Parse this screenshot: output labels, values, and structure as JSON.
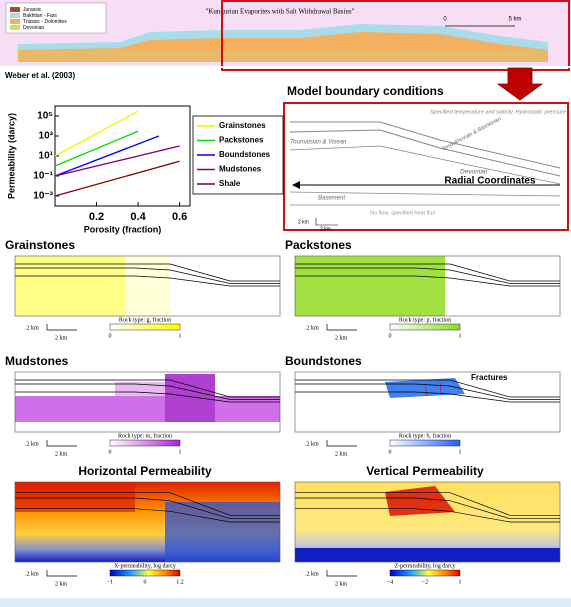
{
  "banner": {
    "title": "\"Kungurian Evaporites with Salt Withdrawal Basins\"",
    "legend": [
      "Jurassic",
      "Bakhtiari - Fars",
      "Triassic - Dolomites",
      "Devonian"
    ],
    "scale": [
      "0",
      "5 km"
    ]
  },
  "citation": "Weber et al. (2003)",
  "permeability_plot": {
    "type": "line",
    "x_label": "Porosity (fraction)",
    "y_label": "Permeability (darcy)",
    "xlim": [
      0,
      0.65
    ],
    "xticks": [
      0.2,
      0.4,
      0.6
    ],
    "ylim": [
      0.0001,
      1000000
    ],
    "log_y": true,
    "yticks": [
      {
        "value": 100000,
        "label": "10⁵"
      },
      {
        "value": 1000,
        "label": "10³"
      },
      {
        "value": 10,
        "label": "10¹"
      },
      {
        "value": 0.1,
        "label": "10⁻¹"
      },
      {
        "value": 0.001,
        "label": "10⁻³"
      }
    ],
    "series": [
      {
        "name": "Grainstones",
        "color": "#f2f200",
        "x": [
          0,
          0.4
        ],
        "values": [
          10,
          300000
        ]
      },
      {
        "name": "Packstones",
        "color": "#00dd00",
        "x": [
          0,
          0.4
        ],
        "values": [
          1,
          3000
        ]
      },
      {
        "name": "Boundstones",
        "color": "#0000ee",
        "x": [
          0,
          0.5
        ],
        "values": [
          0.1,
          1000
        ]
      },
      {
        "name": "Mudstones",
        "color": "#800080",
        "x": [
          0,
          0.6
        ],
        "values": [
          0.1,
          100
        ]
      },
      {
        "name": "Shale",
        "color": "#800000",
        "x": [
          0,
          0.6
        ],
        "values": [
          0.001,
          3
        ]
      }
    ]
  },
  "boundary_panel": {
    "title": "Model boundary conditions",
    "top_label": "Specified temperature and salinity, Hydrostatic pressure",
    "layers": [
      "Tournaisian & Visean",
      "Serpukhovian & Bashkirian",
      "Devonian",
      "Basement"
    ],
    "arrow_label": "Radial Coordinates",
    "bottom_label": "No flow, specified heat flux",
    "scale": [
      "2 km",
      "2 km"
    ]
  },
  "panels": [
    {
      "title": "Grainstones",
      "colorbar_label": "Rock type: g, fraction",
      "colorbar_ticks": [
        "0",
        "1"
      ],
      "scale": [
        ".2 km",
        "2 km"
      ]
    },
    {
      "title": "Packstones",
      "colorbar_label": "Rock type: p, fraction",
      "colorbar_ticks": [
        "0",
        "1"
      ],
      "scale": [
        ".2 km",
        "2 km"
      ]
    },
    {
      "title": "Mudstones",
      "colorbar_label": "Rock type: m, fraction",
      "colorbar_ticks": [
        "0",
        "1"
      ],
      "scale": [
        ".2 km",
        "2 km"
      ]
    },
    {
      "title": "Boundstones",
      "colorbar_label": "Rock type: b, fraction",
      "colorbar_ticks": [
        "0",
        "1"
      ],
      "scale": [
        ".2 km",
        "2 km"
      ],
      "annotation": "Fractures"
    },
    {
      "title": "Horizontal Permeability",
      "colorbar_label": "X-permeability, log darcy",
      "colorbar_ticks": [
        "−1",
        "0",
        "1.2"
      ],
      "scale": [
        ".2 km",
        "2 km"
      ]
    },
    {
      "title": "Vertical Permeability",
      "colorbar_label": "Z-permeability, log darcy",
      "colorbar_ticks": [
        "−4",
        "−2",
        "1"
      ],
      "scale": [
        ".2 km",
        "2 km"
      ]
    }
  ]
}
